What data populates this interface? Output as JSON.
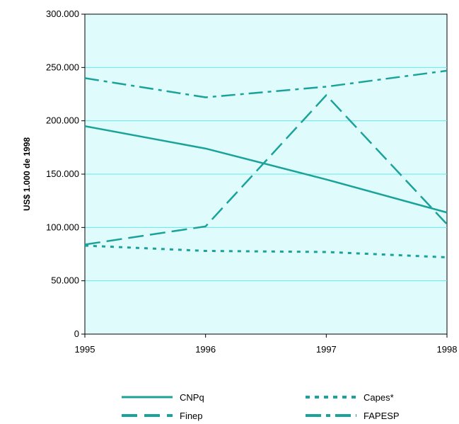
{
  "chart_data": {
    "type": "line",
    "title": "",
    "xlabel": "",
    "ylabel": "US$ 1.000 de 1998",
    "x": [
      1995,
      1996,
      1997,
      1998
    ],
    "x_tick_labels": [
      "1995",
      "1996",
      "1997",
      "1998"
    ],
    "ylim": [
      0,
      300000
    ],
    "y_ticks": [
      0,
      50000,
      100000,
      150000,
      200000,
      250000,
      300000
    ],
    "y_tick_labels": [
      "0",
      "50.000",
      "100.000",
      "150.000",
      "200.000",
      "250.000",
      "300.000"
    ],
    "grid": true,
    "legend_placement": "bottom",
    "background_color": "#e0fbfb",
    "gridline_color": "#66e8e8",
    "series_color": "#1aa39b",
    "series": [
      {
        "name": "CNPq",
        "style": "solid",
        "values": [
          195000,
          174000,
          145000,
          114000
        ]
      },
      {
        "name": "Finep",
        "style": "dashed",
        "values": [
          84000,
          101000,
          224000,
          103000
        ]
      },
      {
        "name": "Capes*",
        "style": "dotted",
        "values": [
          83000,
          78000,
          77000,
          72000
        ]
      },
      {
        "name": "FAPESP",
        "style": "dash-dot",
        "values": [
          240000,
          222000,
          232000,
          247000
        ]
      }
    ]
  }
}
